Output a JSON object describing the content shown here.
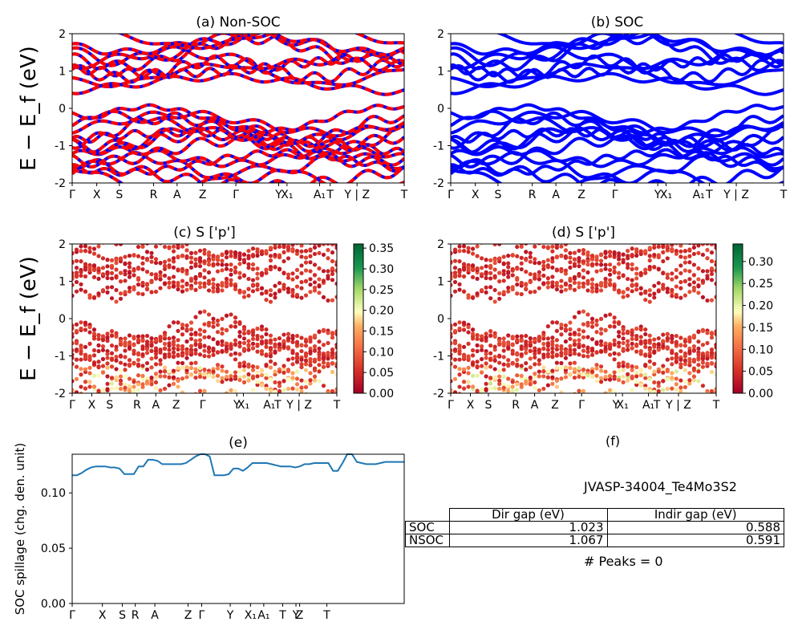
{
  "chart_data": [
    {
      "type": "line",
      "panel": "a",
      "title": "(a) Non-SOC",
      "ylabel": "E − E_f (eV)",
      "ylim": [
        -2,
        2
      ],
      "yticks": [
        -2,
        -1,
        0,
        1,
        2
      ],
      "xtick_labels": [
        "Γ",
        "X",
        "S",
        "R",
        "A",
        "Z",
        "Γ",
        "Y",
        "X₁",
        "A₁",
        "T",
        "Y | Z",
        "T"
      ],
      "colors": [
        "#ff0000",
        "#0000ff"
      ],
      "note_bands": "Conduction bands between about 0.6 and 2 eV; valence bands between about -2 and 0 eV"
    },
    {
      "type": "line",
      "panel": "b",
      "title": "(b) SOC",
      "ylim": [
        -2,
        2
      ],
      "yticks": [
        -2,
        -1,
        0,
        1,
        2
      ],
      "xtick_labels": [
        "Γ",
        "X",
        "S",
        "R",
        "A",
        "Z",
        "Γ",
        "Y",
        "X₁",
        "A₁",
        "T",
        "Y | Z",
        "T"
      ],
      "colors": [
        "#0000ff"
      ]
    },
    {
      "type": "scatter",
      "panel": "c",
      "title": "(c)  S ['p']",
      "ylabel": "E − E_f (eV)",
      "ylim": [
        -2,
        2
      ],
      "yticks": [
        -2,
        -1,
        0,
        1,
        2
      ],
      "xtick_labels": [
        "Γ",
        "X",
        "S",
        "R",
        "A",
        "Z",
        "Γ",
        "Y",
        "X₁",
        "A₁",
        "T",
        "Y | Z",
        "T"
      ],
      "colorbar": {
        "min": 0.0,
        "max": 0.36,
        "ticks": [
          "0.00",
          "0.05",
          "0.10",
          "0.15",
          "0.20",
          "0.25",
          "0.30",
          "0.35"
        ],
        "cmap": "RdYlGn"
      }
    },
    {
      "type": "scatter",
      "panel": "d",
      "title": "(d) S ['p']",
      "ylim": [
        -2,
        2
      ],
      "yticks": [
        -2,
        -1,
        0,
        1,
        2
      ],
      "xtick_labels": [
        "Γ",
        "X",
        "S",
        "R",
        "A",
        "Z",
        "Γ",
        "Y",
        "X₁",
        "A₁",
        "T",
        "Y | Z",
        "T"
      ],
      "colorbar": {
        "min": 0.0,
        "max": 0.34,
        "ticks": [
          "0.00",
          "0.05",
          "0.10",
          "0.15",
          "0.20",
          "0.25",
          "0.30"
        ],
        "cmap": "RdYlGn"
      }
    },
    {
      "type": "line",
      "panel": "e",
      "title": "(e)",
      "ylabel": "SOC spillage (chg. den. unit)",
      "ylim": [
        0,
        0.135
      ],
      "yticks": [
        "0.00",
        "0.05",
        "0.10"
      ],
      "xtick_labels": [
        "Γ",
        "X",
        "S",
        "R",
        "A",
        "Z",
        "Γ",
        "Y",
        "X₁",
        "A₁",
        "T",
        "Y",
        "Z",
        "T"
      ],
      "color": "#1f77b4",
      "x": [
        0,
        1,
        2,
        3,
        4,
        5,
        6,
        7,
        8,
        9,
        10,
        11,
        12,
        13,
        14,
        15,
        16,
        17,
        18,
        19,
        20,
        21,
        22,
        23,
        24,
        25,
        26,
        27,
        28,
        29,
        30,
        31,
        32,
        33,
        34,
        35,
        36,
        37,
        38,
        39,
        40,
        41,
        42,
        43,
        44,
        45,
        46,
        47,
        48,
        49,
        50,
        51,
        52,
        53,
        54,
        55,
        56,
        57,
        58,
        59,
        60,
        61,
        62,
        63,
        64,
        65,
        66,
        67,
        68,
        69,
        70
      ],
      "y": [
        0.116,
        0.116,
        0.118,
        0.121,
        0.123,
        0.124,
        0.124,
        0.124,
        0.123,
        0.123,
        0.122,
        0.117,
        0.117,
        0.117,
        0.124,
        0.124,
        0.13,
        0.13,
        0.129,
        0.126,
        0.126,
        0.126,
        0.126,
        0.126,
        0.127,
        0.13,
        0.133,
        0.136,
        0.135,
        0.133,
        0.116,
        0.116,
        0.116,
        0.117,
        0.122,
        0.122,
        0.12,
        0.123,
        0.127,
        0.127,
        0.127,
        0.127,
        0.126,
        0.125,
        0.124,
        0.124,
        0.124,
        0.123,
        0.124,
        0.126,
        0.126,
        0.127,
        0.127,
        0.127,
        0.127,
        0.12,
        0.12,
        0.127,
        0.136,
        0.136,
        0.128,
        0.127,
        0.126,
        0.126,
        0.126,
        0.127,
        0.128,
        0.128,
        0.128,
        0.128,
        0.128
      ]
    }
  ],
  "panel_f": {
    "title": "(f)",
    "material": "JVASP-34004_Te4Mo3S2",
    "table": {
      "header": [
        "Dir gap (eV)",
        "Indir gap (eV)"
      ],
      "rows": [
        {
          "label": "SOC",
          "dir": "1.023",
          "indir": "0.588"
        },
        {
          "label": "NSOC",
          "dir": "1.067",
          "indir": "0.591"
        }
      ]
    },
    "peaks": "# Peaks = 0"
  }
}
